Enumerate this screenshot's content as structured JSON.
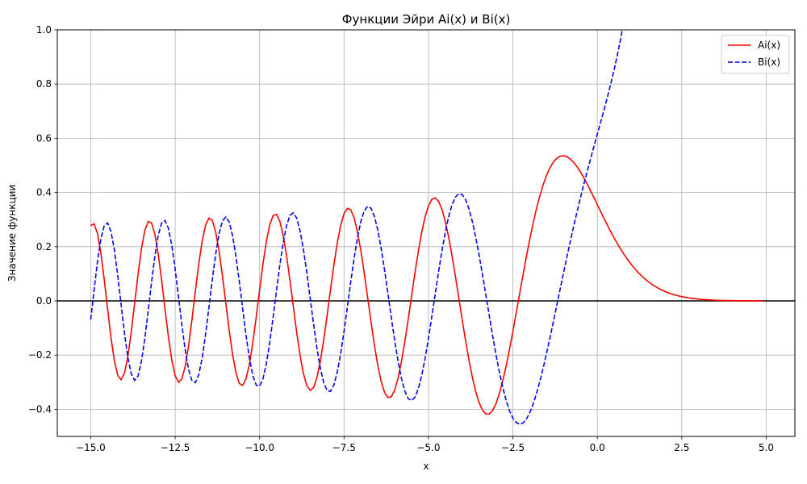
{
  "chart_data": {
    "type": "line",
    "title": "Функции Эйри Ai(x) и Bi(x)",
    "xlabel": "x",
    "ylabel": "Значение функции",
    "xlim": [
      -15.99,
      5.85
    ],
    "ylim": [
      -0.5,
      1.0
    ],
    "xticks": [
      -15.0,
      -12.5,
      -10.0,
      -7.5,
      -5.0,
      -2.5,
      0.0,
      2.5,
      5.0
    ],
    "xtick_labels": [
      "−15.0",
      "−12.5",
      "−10.0",
      "−7.5",
      "−5.0",
      "−2.5",
      "0.0",
      "2.5",
      "5.0"
    ],
    "yticks": [
      -0.4,
      -0.2,
      0.0,
      0.2,
      0.4,
      0.6,
      0.8,
      1.0
    ],
    "ytick_labels": [
      "−0.4",
      "−0.2",
      "0.0",
      "0.2",
      "0.4",
      "0.6",
      "0.8",
      "1.0"
    ],
    "grid": true,
    "legend_position": "top-right",
    "reference_line_y": 0.0,
    "x_range": [
      -15.0,
      4.9
    ],
    "series": [
      {
        "name": "Ai(x)",
        "color": "#ff0000",
        "style": "solid"
      },
      {
        "name": "Bi(x)",
        "color": "#0000ff",
        "style": "dashed"
      }
    ],
    "extrema_samples": {
      "Ai(x)": [
        [
          -15.0,
          0.278
        ],
        [
          -13.9,
          -0.29
        ],
        [
          -13.2,
          0.29
        ],
        [
          -12.4,
          -0.3
        ],
        [
          -11.5,
          0.305
        ],
        [
          -10.7,
          -0.31
        ],
        [
          -9.5,
          0.32
        ],
        [
          -8.6,
          -0.33
        ],
        [
          -7.4,
          0.34
        ],
        [
          -6.3,
          -0.355
        ],
        [
          -4.8,
          0.38
        ],
        [
          -3.25,
          -0.42
        ],
        [
          -1.02,
          0.536
        ],
        [
          0.0,
          0.355
        ],
        [
          4.9,
          0.0
        ]
      ],
      "Bi(x)": [
        [
          -15.0,
          -0.07
        ],
        [
          -14.5,
          0.29
        ],
        [
          -13.7,
          -0.29
        ],
        [
          -12.9,
          0.295
        ],
        [
          -12.0,
          -0.3
        ],
        [
          -11.0,
          0.31
        ],
        [
          -10.0,
          -0.315
        ],
        [
          -9.05,
          0.325
        ],
        [
          -7.9,
          -0.335
        ],
        [
          -6.8,
          0.35
        ],
        [
          -5.5,
          -0.37
        ],
        [
          -4.1,
          0.395
        ],
        [
          -2.3,
          -0.455
        ],
        [
          0.0,
          0.615
        ],
        [
          0.72,
          1.0
        ]
      ]
    }
  }
}
